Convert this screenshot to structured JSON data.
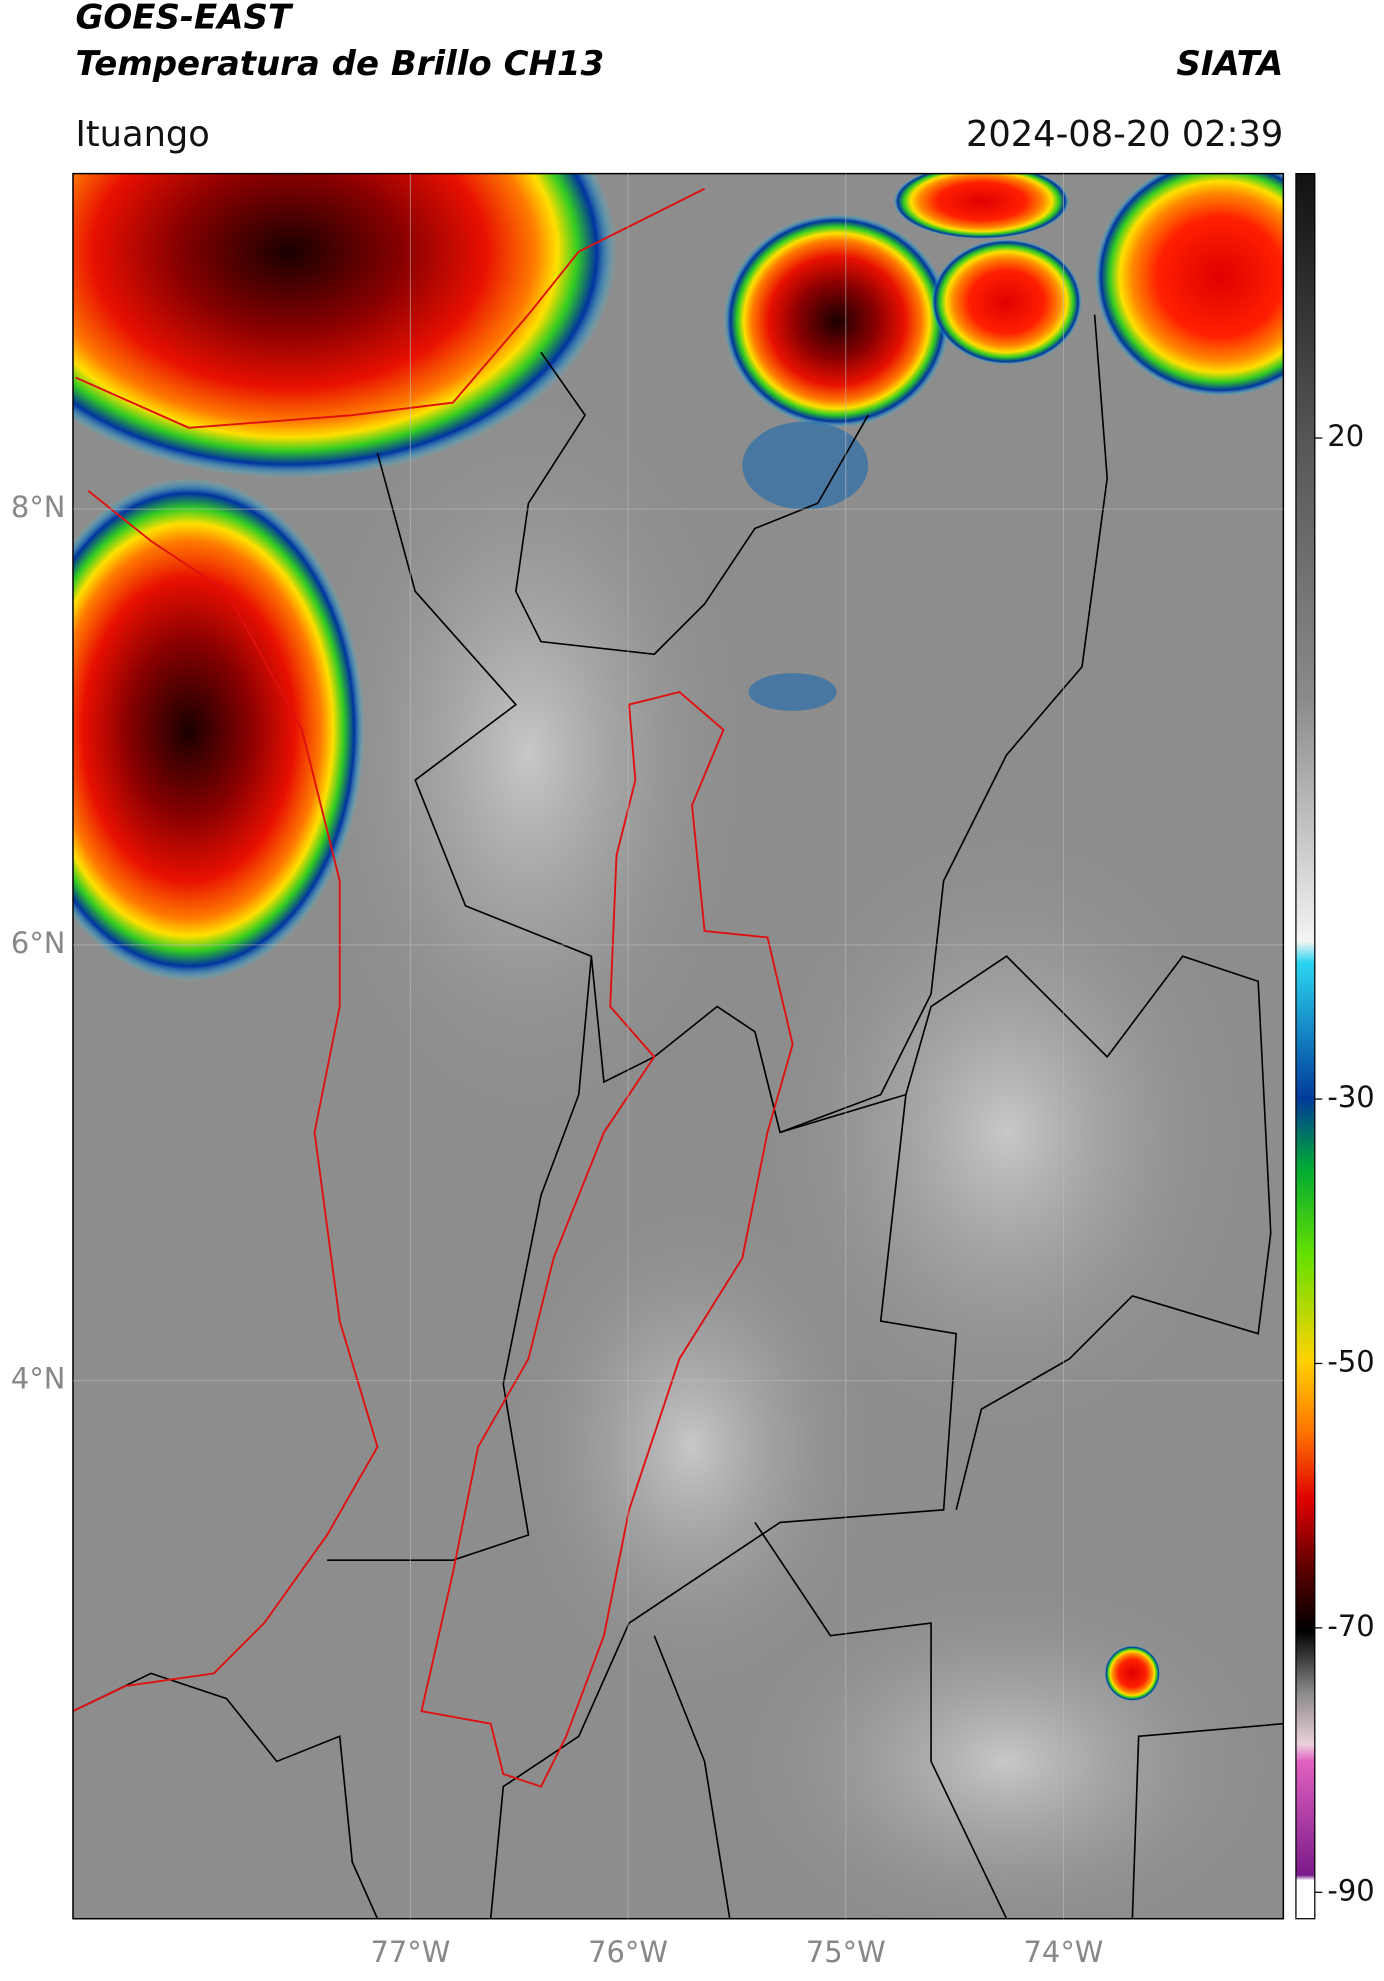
{
  "header": {
    "satellite": "GOES-EAST",
    "product": "Temperatura de Brillo CH13",
    "agency": "SIATA",
    "location": "Ituango",
    "timestamp": "2024-08-20 02:39"
  },
  "map": {
    "lonlim": [
      -78.55,
      -72.99
    ],
    "latlim": [
      1.53,
      9.54
    ],
    "lon_ticks": [
      {
        "value": -77,
        "label": "77°W"
      },
      {
        "value": -76,
        "label": "76°W"
      },
      {
        "value": -75,
        "label": "75°W"
      },
      {
        "value": -74,
        "label": "74°W"
      }
    ],
    "lat_ticks": [
      {
        "value": 8,
        "label": "8°N"
      },
      {
        "value": 6,
        "label": "6°N"
      },
      {
        "value": 4,
        "label": "4°N"
      }
    ],
    "grid": true,
    "colorbar": {
      "lim": [
        -92,
        40
      ],
      "ticks": [
        20,
        -30,
        -50,
        -70,
        -90
      ]
    }
  }
}
